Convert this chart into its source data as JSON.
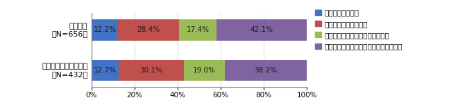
{
  "categories": [
    "自社単独\n（N=656）",
    "自社企業グループ横断\n（N=432）"
  ],
  "series": [
    {
      "label": "かなりできている",
      "values": [
        12.2,
        12.7
      ],
      "color": "#4472C4"
    },
    {
      "label": "それなりにできている",
      "values": [
        28.4,
        30.1
      ],
      "color": "#C0504D"
    },
    {
      "label": "できておらず、検討中・検討予定",
      "values": [
        17.4,
        19.0
      ],
      "color": "#9BBB59"
    },
    {
      "label": "できておらず、検討する考えは当面ない",
      "values": [
        42.1,
        38.2
      ],
      "color": "#8064A2"
    }
  ],
  "xlim": [
    0,
    100
  ],
  "xticks": [
    0,
    20,
    40,
    60,
    80,
    100
  ],
  "xticklabels": [
    "0%",
    "20%",
    "40%",
    "60%",
    "80%",
    "100%"
  ],
  "bar_height": 0.52,
  "background_color": "#FFFFFF",
  "legend_fontsize": 7.5,
  "label_fontsize": 7.5,
  "ylabel_fontsize": 8,
  "tick_fontsize": 7.5,
  "label_color": "#1a1a1a"
}
